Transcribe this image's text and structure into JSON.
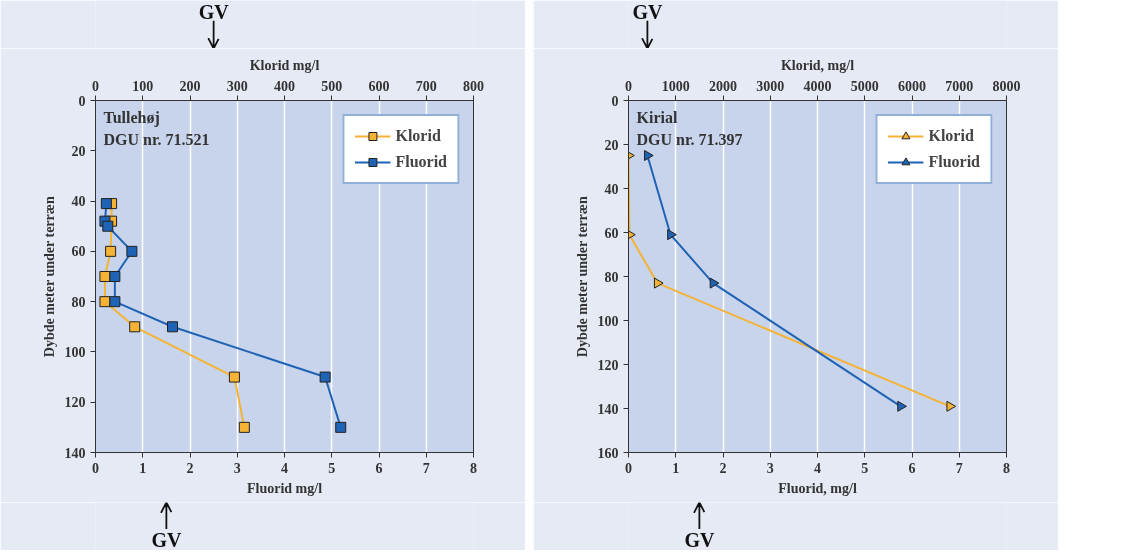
{
  "chart_data": [
    {
      "type": "line",
      "xlabel": "Fluorid mg/l",
      "x2label": "Klorid mg/l",
      "ylabel": "Dybde meter under terræn",
      "xlim": [
        0,
        8
      ],
      "xticks": [
        0,
        1,
        2,
        3,
        4,
        5,
        6,
        7,
        8
      ],
      "x2lim": [
        0,
        800
      ],
      "x2ticks": [
        0,
        100,
        200,
        300,
        400,
        500,
        600,
        700,
        800
      ],
      "ylim": [
        140,
        0
      ],
      "yticks": [
        0,
        20,
        40,
        60,
        80,
        100,
        120,
        140
      ],
      "grid": "x",
      "legend": "top right",
      "marker": "square",
      "annotations": [
        "Tullehøj",
        "DGU nr. 71.521"
      ],
      "ref_lines": [
        {
          "axis": "x2",
          "value": 250,
          "label": "GV"
        },
        {
          "axis": "x",
          "value": 1.5,
          "label": "GV"
        }
      ],
      "series": [
        {
          "name": "Klorid",
          "color": "#f5b335",
          "axis": "x2",
          "x": [
            34,
            34,
            32,
            20,
            20,
            83,
            294,
            315
          ],
          "values": [
            41,
            48,
            60,
            70,
            80,
            90,
            110,
            130
          ]
        },
        {
          "name": "Fluorid",
          "color": "#1f63b4",
          "x": [
            0.23,
            0.2,
            0.26,
            0.77,
            0.41,
            0.41,
            1.63,
            4.86,
            5.19
          ],
          "values": [
            41,
            48,
            50,
            60,
            70,
            80,
            90,
            110,
            130
          ]
        }
      ]
    },
    {
      "type": "line",
      "xlabel": "Fluorid, mg/l",
      "x2label": "Klorid, mg/l",
      "ylabel": "Dybde meter under terræn",
      "xlim": [
        0,
        8
      ],
      "xticks": [
        0,
        1,
        2,
        3,
        4,
        5,
        6,
        7,
        8
      ],
      "x2lim": [
        0,
        8000
      ],
      "x2ticks": [
        0,
        1000,
        2000,
        3000,
        4000,
        5000,
        6000,
        7000,
        8000
      ],
      "ylim": [
        160,
        0
      ],
      "yticks": [
        0,
        20,
        40,
        60,
        80,
        100,
        120,
        140,
        160
      ],
      "grid": "x",
      "legend": "top right",
      "marker": "triangle",
      "annotations": [
        "Kirial",
        "DGU nr. 71.397"
      ],
      "ref_lines": [
        {
          "axis": "x2",
          "value": 400,
          "label": "GV"
        },
        {
          "axis": "x",
          "value": 1.5,
          "label": "GV"
        }
      ],
      "series": [
        {
          "name": "Klorid",
          "color": "#f5b335",
          "axis": "x2",
          "x": [
            0,
            20,
            610,
            6800
          ],
          "values": [
            25,
            61,
            83,
            139
          ]
        },
        {
          "name": "Fluorid",
          "color": "#1f63b4",
          "x": [
            0.4,
            0.89,
            1.79,
            5.76
          ],
          "values": [
            25,
            61,
            83,
            139
          ]
        }
      ]
    }
  ]
}
